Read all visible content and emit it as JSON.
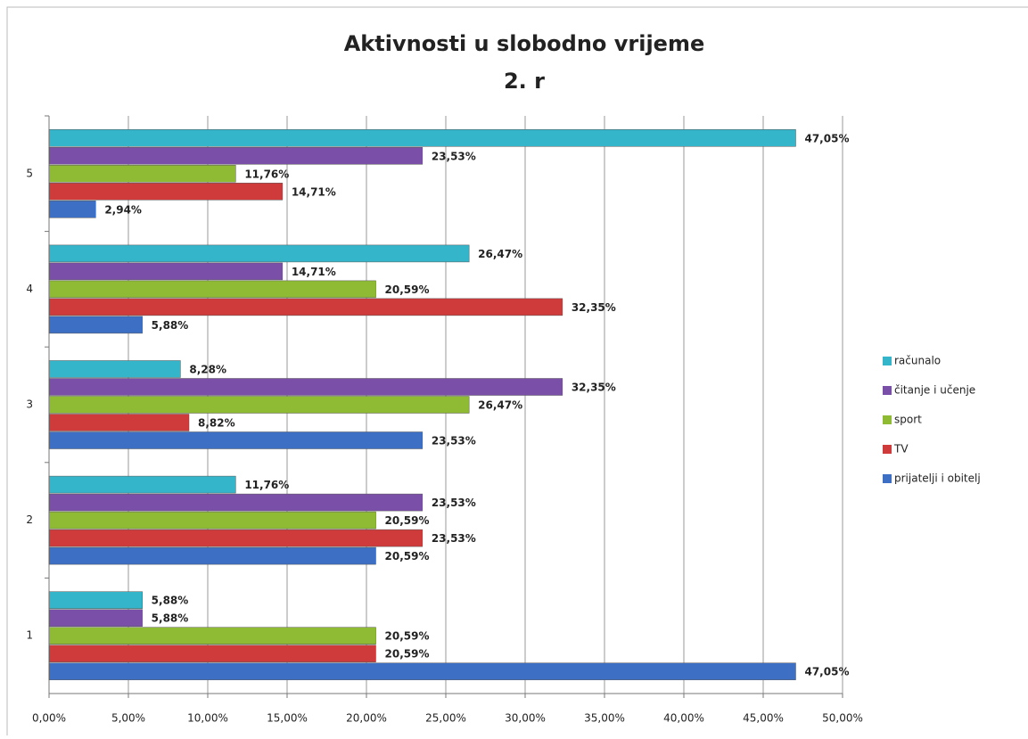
{
  "chart_data": {
    "type": "bar",
    "orientation": "horizontal",
    "title": "Aktivnosti u slobodno vrijeme",
    "subtitle": "2. r",
    "categories": [
      "1",
      "2",
      "3",
      "4",
      "5"
    ],
    "series": [
      {
        "name": "prijatelji i obitelj",
        "color": "#3d6fc4",
        "values": [
          47.05,
          20.59,
          23.53,
          5.88,
          2.94
        ],
        "value_labels": [
          "47,05%",
          "20,59%",
          "23,53%",
          "5,88%",
          "2,94%"
        ]
      },
      {
        "name": "TV",
        "color": "#cf3a3a",
        "values": [
          20.59,
          23.53,
          8.82,
          32.35,
          14.71
        ],
        "value_labels": [
          "20,59%",
          "23,53%",
          "8,82%",
          "32,35%",
          "14,71%"
        ]
      },
      {
        "name": "sport",
        "color": "#8fbb34",
        "values": [
          20.59,
          20.59,
          26.47,
          20.59,
          11.76
        ],
        "value_labels": [
          "20,59%",
          "20,59%",
          "26,47%",
          "20,59%",
          "11,76%"
        ]
      },
      {
        "name": "čitanje i učenje",
        "color": "#7a4fa8",
        "values": [
          5.88,
          23.53,
          32.35,
          14.71,
          23.53
        ],
        "value_labels": [
          "5,88%",
          "23,53%",
          "32,35%",
          "14,71%",
          "23,53%"
        ]
      },
      {
        "name": "računalo",
        "color": "#35b5c9",
        "values": [
          5.88,
          11.76,
          8.28,
          26.47,
          47.05
        ],
        "value_labels": [
          "5,88%",
          "11,76%",
          "8,28%",
          "26,47%",
          "47,05%"
        ]
      }
    ],
    "xlim": [
      0,
      50
    ],
    "xticks": [
      {
        "value": 0,
        "label": "0,00%"
      },
      {
        "value": 5,
        "label": "5,00%"
      },
      {
        "value": 10,
        "label": "10,00%"
      },
      {
        "value": 15,
        "label": "15,00%"
      },
      {
        "value": 20,
        "label": "20,00%"
      },
      {
        "value": 25,
        "label": "25,00%"
      },
      {
        "value": 30,
        "label": "30,00%"
      },
      {
        "value": 35,
        "label": "35,00%"
      },
      {
        "value": 40,
        "label": "40,00%"
      },
      {
        "value": 45,
        "label": "45,00%"
      },
      {
        "value": 50,
        "label": "50,00%"
      }
    ],
    "grid": true,
    "legend": "right"
  }
}
